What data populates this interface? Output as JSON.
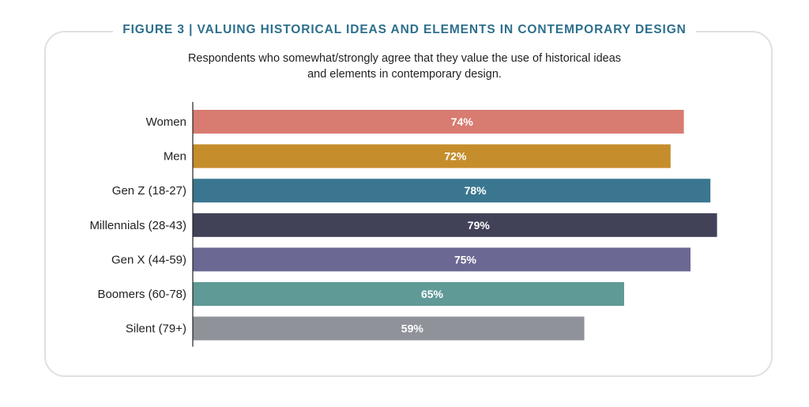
{
  "figure": {
    "title": "FIGURE 3  |  VALUING HISTORICAL IDEAS AND ELEMENTS IN CONTEMPORARY DESIGN",
    "subtitle_line1": "Respondents who somewhat/strongly agree that they value the use of historical ideas",
    "subtitle_line2": "and elements in contemporary design."
  },
  "chart_data": {
    "type": "bar",
    "orientation": "horizontal",
    "categories": [
      "Women",
      "Men",
      "Gen Z (18-27)",
      "Millennials (28-43)",
      "Gen X (44-59)",
      "Boomers (60-78)",
      "Silent (79+)"
    ],
    "values": [
      74,
      72,
      78,
      79,
      75,
      65,
      59
    ],
    "value_labels": [
      "74%",
      "72%",
      "78%",
      "79%",
      "75%",
      "65%",
      "59%"
    ],
    "colors": [
      "#d87b70",
      "#c68d2c",
      "#3a7690",
      "#414158",
      "#6b6893",
      "#5f9a97",
      "#8f9299"
    ],
    "xlim": [
      0,
      100
    ],
    "grid": false,
    "legend": "none"
  }
}
